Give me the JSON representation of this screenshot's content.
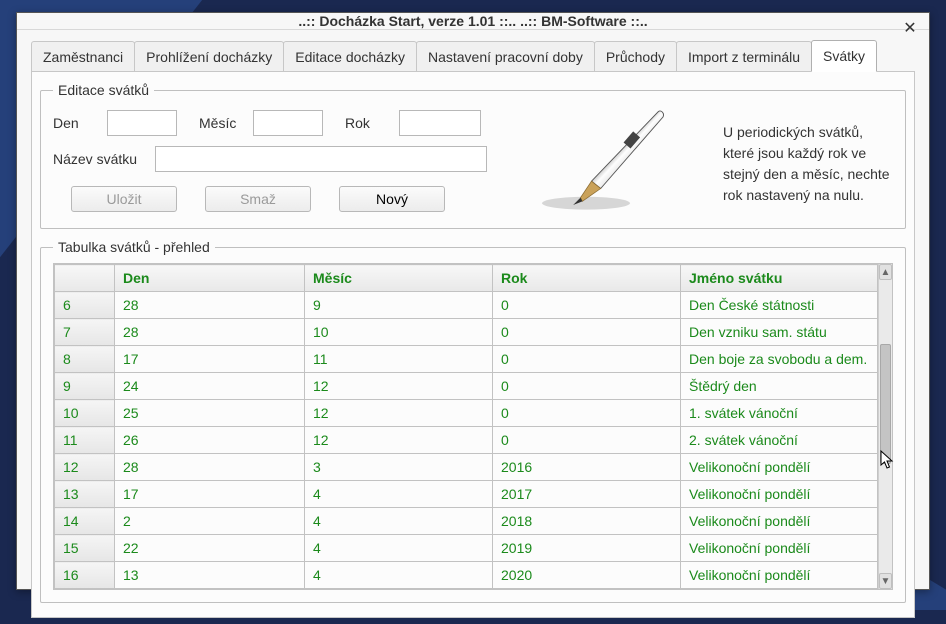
{
  "colors": {
    "background": "#1a2850",
    "bgshape": "#25407a",
    "window_bg": "#f7f7f7",
    "panel_bg": "#fcfcfc",
    "border": "#c7c7c7",
    "header_text": "#1b8a1b",
    "cell_text": "#1b8a1b"
  },
  "window": {
    "title": "..:: Docházka Start, verze 1.01 ::..       ..:: BM-Software ::.."
  },
  "tabs": [
    {
      "label": "Zaměstnanci",
      "active": false
    },
    {
      "label": "Prohlížení docházky",
      "active": false
    },
    {
      "label": "Editace docházky",
      "active": false
    },
    {
      "label": "Nastavení pracovní doby",
      "active": false
    },
    {
      "label": "Průchody",
      "active": false
    },
    {
      "label": "Import z terminálu",
      "active": false
    },
    {
      "label": "Svátky",
      "active": true
    }
  ],
  "form": {
    "legend": "Editace svátků",
    "label_den": "Den",
    "label_mesic": "Měsíc",
    "label_rok": "Rok",
    "label_nazev": "Název svátku",
    "value_den": "",
    "value_mesic": "",
    "value_rok": "",
    "value_nazev": "",
    "btn_save": "Uložit",
    "btn_delete": "Smaž",
    "btn_new": "Nový",
    "info_text": "U periodických svátků, které jsou každý rok ve stejný den a měsíc, nechte rok nastavený na nulu."
  },
  "table": {
    "legend": "Tabulka svátků - přehled",
    "headers": [
      "",
      "Den",
      "Měsíc",
      "Rok",
      "Jméno svátku"
    ],
    "rows": [
      [
        "6",
        "28",
        "9",
        "0",
        "Den České státnosti"
      ],
      [
        "7",
        "28",
        "10",
        "0",
        "Den vzniku sam. státu"
      ],
      [
        "8",
        "17",
        "11",
        "0",
        "Den boje za svobodu a dem."
      ],
      [
        "9",
        "24",
        "12",
        "0",
        "Štědrý den"
      ],
      [
        "10",
        "25",
        "12",
        "0",
        "1. svátek vánoční"
      ],
      [
        "11",
        "26",
        "12",
        "0",
        "2. svátek vánoční"
      ],
      [
        "12",
        "28",
        "3",
        "2016",
        "Velikonoční pondělí"
      ],
      [
        "13",
        "17",
        "4",
        "2017",
        "Velikonoční pondělí"
      ],
      [
        "14",
        "2",
        "4",
        "2018",
        "Velikonoční pondělí"
      ],
      [
        "15",
        "22",
        "4",
        "2019",
        "Velikonoční pondělí"
      ],
      [
        "16",
        "13",
        "4",
        "2020",
        "Velikonoční pondělí"
      ]
    ]
  }
}
